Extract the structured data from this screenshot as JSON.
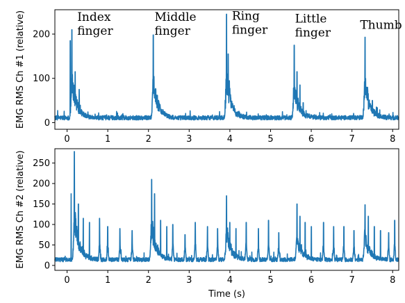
{
  "chart_data": [
    {
      "type": "line",
      "title": "",
      "xlabel": "",
      "ylabel": "EMG RMS Ch #1 (relative)",
      "xlim": [
        -0.3,
        8.15
      ],
      "ylim": [
        -15,
        255
      ],
      "x_ticks": [
        0,
        1,
        2,
        3,
        4,
        5,
        6,
        7,
        8
      ],
      "y_ticks": [
        0,
        100,
        200
      ],
      "grid": false,
      "color": "#1f77b4",
      "annotations": [
        {
          "lines": [
            "Index",
            "finger"
          ],
          "x": 0.25,
          "y": 230
        },
        {
          "lines": [
            "Middle",
            "finger"
          ],
          "x": 2.15,
          "y": 230
        },
        {
          "lines": [
            "Ring",
            "finger"
          ],
          "x": 4.05,
          "y": 232
        },
        {
          "lines": [
            "Little",
            "finger"
          ],
          "x": 5.6,
          "y": 226
        },
        {
          "lines": [
            "Thumb"
          ],
          "x": 7.2,
          "y": 212
        }
      ],
      "baseline": 11,
      "events": [
        {
          "t": 0.12,
          "peak": 210,
          "secondary": [
            [
              0.08,
              185
            ],
            [
              0.2,
              115
            ],
            [
              0.3,
              75
            ]
          ]
        },
        {
          "t": 2.12,
          "peak": 198,
          "secondary": [
            [
              2.18,
              75
            ],
            [
              2.28,
              40
            ]
          ]
        },
        {
          "t": 3.92,
          "peak": 245,
          "secondary": [
            [
              3.96,
              155
            ],
            [
              4.05,
              40
            ]
          ]
        },
        {
          "t": 5.58,
          "peak": 175,
          "secondary": [
            [
              5.65,
              115
            ],
            [
              5.72,
              85
            ],
            [
              5.8,
              45
            ]
          ]
        },
        {
          "t": 7.32,
          "peak": 193,
          "secondary": [
            [
              7.38,
              80
            ],
            [
              7.5,
              50
            ],
            [
              7.6,
              35
            ]
          ]
        }
      ]
    },
    {
      "type": "line",
      "title": "",
      "xlabel": "Time (s)",
      "ylabel": "EMG RMS Ch #2 (relative)",
      "xlim": [
        -0.3,
        8.15
      ],
      "ylim": [
        -12,
        285
      ],
      "x_ticks": [
        0,
        1,
        2,
        3,
        4,
        5,
        6,
        7,
        8
      ],
      "y_ticks": [
        0,
        50,
        100,
        150,
        200,
        250
      ],
      "grid": false,
      "color": "#1f77b4",
      "baseline": 14,
      "events": [
        {
          "t": 0.18,
          "peak": 278,
          "secondary": [
            [
              0.1,
              175
            ],
            [
              0.28,
              150
            ],
            [
              0.4,
              115
            ],
            [
              0.55,
              105
            ]
          ]
        },
        {
          "t": 2.08,
          "peak": 210,
          "secondary": [
            [
              2.15,
              175
            ],
            [
              2.3,
              110
            ],
            [
              2.45,
              95
            ]
          ]
        },
        {
          "t": 3.92,
          "peak": 170,
          "secondary": [
            [
              4.0,
              105
            ],
            [
              4.15,
              90
            ]
          ]
        },
        {
          "t": 5.65,
          "peak": 150,
          "secondary": [
            [
              5.72,
              120
            ],
            [
              5.85,
              105
            ],
            [
              6.0,
              95
            ]
          ]
        },
        {
          "t": 7.32,
          "peak": 148,
          "secondary": [
            [
              7.4,
              120
            ],
            [
              7.55,
              95
            ],
            [
              7.7,
              85
            ]
          ]
        }
      ],
      "spikes": [
        [
          0.8,
          115
        ],
        [
          1.0,
          95
        ],
        [
          1.3,
          90
        ],
        [
          1.6,
          85
        ],
        [
          2.6,
          100
        ],
        [
          2.9,
          75
        ],
        [
          3.15,
          105
        ],
        [
          3.45,
          95
        ],
        [
          3.7,
          90
        ],
        [
          4.4,
          105
        ],
        [
          4.7,
          90
        ],
        [
          4.95,
          110
        ],
        [
          5.2,
          80
        ],
        [
          6.3,
          105
        ],
        [
          6.55,
          95
        ],
        [
          6.8,
          95
        ],
        [
          7.05,
          85
        ],
        [
          7.9,
          80
        ],
        [
          8.05,
          110
        ]
      ]
    }
  ]
}
